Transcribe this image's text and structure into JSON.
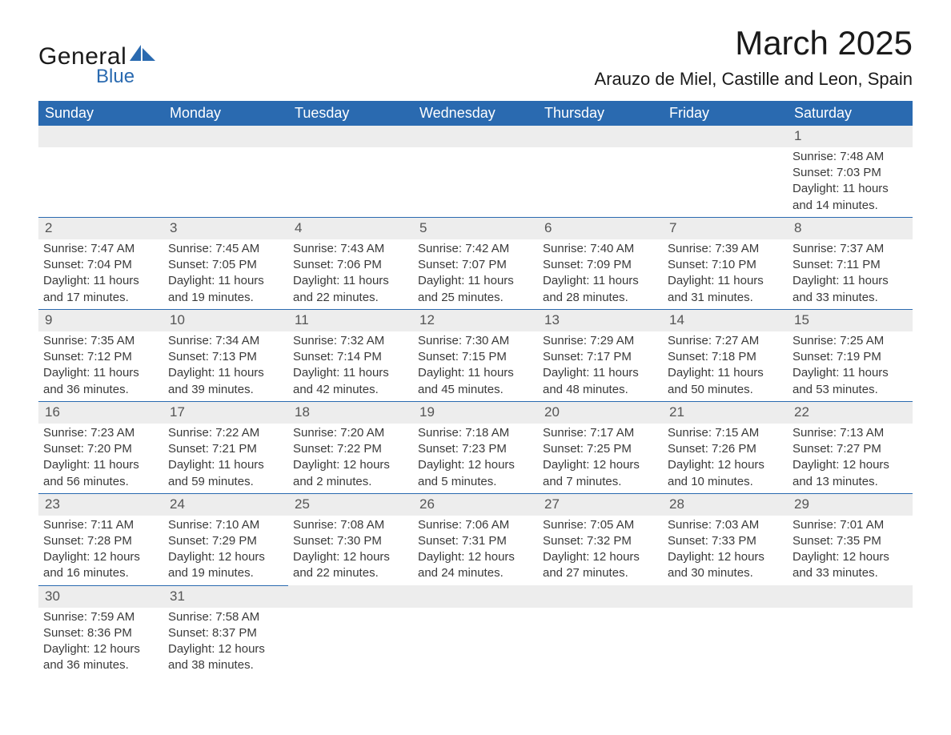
{
  "brand": {
    "word1": "General",
    "word2": "Blue",
    "shape_color": "#2a6ab0",
    "text_color_dark": "#1a1a1a",
    "text_color_blue": "#2a6ab0"
  },
  "title": {
    "month_year": "March 2025",
    "location": "Arauzo de Miel, Castille and Leon, Spain"
  },
  "calendar": {
    "header_bg": "#2a6ab0",
    "header_text": "#ffffff",
    "row_divider": "#2a6ab0",
    "daynum_bg": "#ededed",
    "body_text": "#3a3a3a",
    "weekdays": [
      "Sunday",
      "Monday",
      "Tuesday",
      "Wednesday",
      "Thursday",
      "Friday",
      "Saturday"
    ],
    "weeks": [
      [
        null,
        null,
        null,
        null,
        null,
        null,
        {
          "n": "1",
          "sunrise": "Sunrise: 7:48 AM",
          "sunset": "Sunset: 7:03 PM",
          "dl1": "Daylight: 11 hours",
          "dl2": "and 14 minutes."
        }
      ],
      [
        {
          "n": "2",
          "sunrise": "Sunrise: 7:47 AM",
          "sunset": "Sunset: 7:04 PM",
          "dl1": "Daylight: 11 hours",
          "dl2": "and 17 minutes."
        },
        {
          "n": "3",
          "sunrise": "Sunrise: 7:45 AM",
          "sunset": "Sunset: 7:05 PM",
          "dl1": "Daylight: 11 hours",
          "dl2": "and 19 minutes."
        },
        {
          "n": "4",
          "sunrise": "Sunrise: 7:43 AM",
          "sunset": "Sunset: 7:06 PM",
          "dl1": "Daylight: 11 hours",
          "dl2": "and 22 minutes."
        },
        {
          "n": "5",
          "sunrise": "Sunrise: 7:42 AM",
          "sunset": "Sunset: 7:07 PM",
          "dl1": "Daylight: 11 hours",
          "dl2": "and 25 minutes."
        },
        {
          "n": "6",
          "sunrise": "Sunrise: 7:40 AM",
          "sunset": "Sunset: 7:09 PM",
          "dl1": "Daylight: 11 hours",
          "dl2": "and 28 minutes."
        },
        {
          "n": "7",
          "sunrise": "Sunrise: 7:39 AM",
          "sunset": "Sunset: 7:10 PM",
          "dl1": "Daylight: 11 hours",
          "dl2": "and 31 minutes."
        },
        {
          "n": "8",
          "sunrise": "Sunrise: 7:37 AM",
          "sunset": "Sunset: 7:11 PM",
          "dl1": "Daylight: 11 hours",
          "dl2": "and 33 minutes."
        }
      ],
      [
        {
          "n": "9",
          "sunrise": "Sunrise: 7:35 AM",
          "sunset": "Sunset: 7:12 PM",
          "dl1": "Daylight: 11 hours",
          "dl2": "and 36 minutes."
        },
        {
          "n": "10",
          "sunrise": "Sunrise: 7:34 AM",
          "sunset": "Sunset: 7:13 PM",
          "dl1": "Daylight: 11 hours",
          "dl2": "and 39 minutes."
        },
        {
          "n": "11",
          "sunrise": "Sunrise: 7:32 AM",
          "sunset": "Sunset: 7:14 PM",
          "dl1": "Daylight: 11 hours",
          "dl2": "and 42 minutes."
        },
        {
          "n": "12",
          "sunrise": "Sunrise: 7:30 AM",
          "sunset": "Sunset: 7:15 PM",
          "dl1": "Daylight: 11 hours",
          "dl2": "and 45 minutes."
        },
        {
          "n": "13",
          "sunrise": "Sunrise: 7:29 AM",
          "sunset": "Sunset: 7:17 PM",
          "dl1": "Daylight: 11 hours",
          "dl2": "and 48 minutes."
        },
        {
          "n": "14",
          "sunrise": "Sunrise: 7:27 AM",
          "sunset": "Sunset: 7:18 PM",
          "dl1": "Daylight: 11 hours",
          "dl2": "and 50 minutes."
        },
        {
          "n": "15",
          "sunrise": "Sunrise: 7:25 AM",
          "sunset": "Sunset: 7:19 PM",
          "dl1": "Daylight: 11 hours",
          "dl2": "and 53 minutes."
        }
      ],
      [
        {
          "n": "16",
          "sunrise": "Sunrise: 7:23 AM",
          "sunset": "Sunset: 7:20 PM",
          "dl1": "Daylight: 11 hours",
          "dl2": "and 56 minutes."
        },
        {
          "n": "17",
          "sunrise": "Sunrise: 7:22 AM",
          "sunset": "Sunset: 7:21 PM",
          "dl1": "Daylight: 11 hours",
          "dl2": "and 59 minutes."
        },
        {
          "n": "18",
          "sunrise": "Sunrise: 7:20 AM",
          "sunset": "Sunset: 7:22 PM",
          "dl1": "Daylight: 12 hours",
          "dl2": "and 2 minutes."
        },
        {
          "n": "19",
          "sunrise": "Sunrise: 7:18 AM",
          "sunset": "Sunset: 7:23 PM",
          "dl1": "Daylight: 12 hours",
          "dl2": "and 5 minutes."
        },
        {
          "n": "20",
          "sunrise": "Sunrise: 7:17 AM",
          "sunset": "Sunset: 7:25 PM",
          "dl1": "Daylight: 12 hours",
          "dl2": "and 7 minutes."
        },
        {
          "n": "21",
          "sunrise": "Sunrise: 7:15 AM",
          "sunset": "Sunset: 7:26 PM",
          "dl1": "Daylight: 12 hours",
          "dl2": "and 10 minutes."
        },
        {
          "n": "22",
          "sunrise": "Sunrise: 7:13 AM",
          "sunset": "Sunset: 7:27 PM",
          "dl1": "Daylight: 12 hours",
          "dl2": "and 13 minutes."
        }
      ],
      [
        {
          "n": "23",
          "sunrise": "Sunrise: 7:11 AM",
          "sunset": "Sunset: 7:28 PM",
          "dl1": "Daylight: 12 hours",
          "dl2": "and 16 minutes."
        },
        {
          "n": "24",
          "sunrise": "Sunrise: 7:10 AM",
          "sunset": "Sunset: 7:29 PM",
          "dl1": "Daylight: 12 hours",
          "dl2": "and 19 minutes."
        },
        {
          "n": "25",
          "sunrise": "Sunrise: 7:08 AM",
          "sunset": "Sunset: 7:30 PM",
          "dl1": "Daylight: 12 hours",
          "dl2": "and 22 minutes."
        },
        {
          "n": "26",
          "sunrise": "Sunrise: 7:06 AM",
          "sunset": "Sunset: 7:31 PM",
          "dl1": "Daylight: 12 hours",
          "dl2": "and 24 minutes."
        },
        {
          "n": "27",
          "sunrise": "Sunrise: 7:05 AM",
          "sunset": "Sunset: 7:32 PM",
          "dl1": "Daylight: 12 hours",
          "dl2": "and 27 minutes."
        },
        {
          "n": "28",
          "sunrise": "Sunrise: 7:03 AM",
          "sunset": "Sunset: 7:33 PM",
          "dl1": "Daylight: 12 hours",
          "dl2": "and 30 minutes."
        },
        {
          "n": "29",
          "sunrise": "Sunrise: 7:01 AM",
          "sunset": "Sunset: 7:35 PM",
          "dl1": "Daylight: 12 hours",
          "dl2": "and 33 minutes."
        }
      ],
      [
        {
          "n": "30",
          "sunrise": "Sunrise: 7:59 AM",
          "sunset": "Sunset: 8:36 PM",
          "dl1": "Daylight: 12 hours",
          "dl2": "and 36 minutes."
        },
        {
          "n": "31",
          "sunrise": "Sunrise: 7:58 AM",
          "sunset": "Sunset: 8:37 PM",
          "dl1": "Daylight: 12 hours",
          "dl2": "and 38 minutes."
        },
        null,
        null,
        null,
        null,
        null
      ]
    ]
  }
}
